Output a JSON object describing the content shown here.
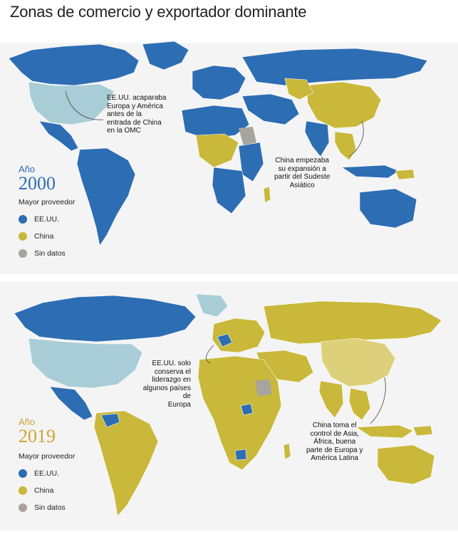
{
  "title": "Zonas de comercio y exportador dominante",
  "colors": {
    "usa": "#2d6db3",
    "china": "#c9b83a",
    "no_data": "#a6a49c",
    "usa_light": "#a9cdd6",
    "china_light": "#ddd07a",
    "year_2000": "#2d6db3",
    "year_2019": "#c9a43a",
    "background_land": "#e8e8e8"
  },
  "panels": [
    {
      "year_label": "Año",
      "year": "2000",
      "legend_title": "Mayor proveedor",
      "legend": [
        {
          "label": "EE.UU.",
          "color": "#2d6db3"
        },
        {
          "label": "China",
          "color": "#c9b83a"
        },
        {
          "label": "Sin datos",
          "color": "#a6a49c"
        }
      ],
      "annotations": [
        {
          "text": "EE.UU. acaparaba\nEuropa y América\nantes de la\nentrada de China\nen la OMC"
        },
        {
          "text": "China empezaba\nsu expansión a\npartir del Sudeste\nAsiático"
        }
      ]
    },
    {
      "year_label": "Año",
      "year": "2019",
      "legend_title": "Mayor proveedor",
      "legend": [
        {
          "label": "EE.UU.",
          "color": "#2d6db3"
        },
        {
          "label": "China",
          "color": "#c9b83a"
        },
        {
          "label": "Sin datos",
          "color": "#a6a49c"
        }
      ],
      "annotations": [
        {
          "text": "EE.UU. solo\nconserva el\nliderazgo en\nalgunos países de\nEuropa"
        },
        {
          "text": "China toma el\ncontrol de Asia,\nÁfrica, buena\nparte de Europa y\nAmérica Latina"
        }
      ]
    }
  ]
}
